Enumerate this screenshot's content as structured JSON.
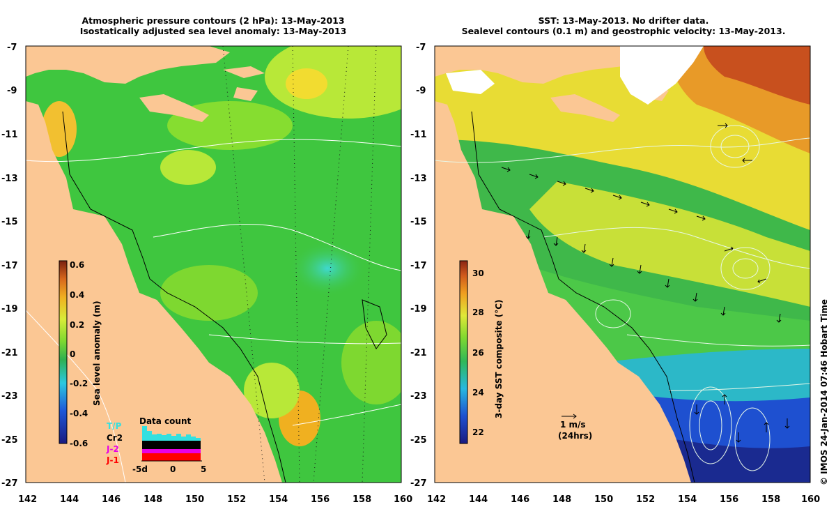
{
  "left_panel": {
    "title_line1": "Atmospheric pressure contours (2 hPa): 13-May-2013",
    "title_line2": "Isostatically adjusted sea level anomaly: 13-May-2013",
    "colorbar_label": "Sea level anomaly (m)",
    "colorbar_ticks": [
      "0.6",
      "0.4",
      "0.2",
      "0",
      "-0.2",
      "-0.4",
      "-0.6"
    ],
    "data_count": {
      "title": "Data count",
      "satellites": [
        {
          "name": "T/P",
          "color": "#33e0e0"
        },
        {
          "name": "Cr2",
          "color": "#000000"
        },
        {
          "name": "J-2",
          "color": "#e800e8"
        },
        {
          "name": "J-1",
          "color": "#ff0000"
        }
      ],
      "axis_ticks": [
        "-5d",
        "0",
        "5"
      ]
    }
  },
  "right_panel": {
    "title_line1": "SST: 13-May-2013. No drifter data.",
    "title_line2": "Sealevel contours (0.1 m) and geostrophic velocity: 13-May-2013.",
    "colorbar_label": "3-day SST composite (°C)",
    "colorbar_ticks": [
      "30",
      "28",
      "26",
      "24",
      "22"
    ],
    "velocity_legend": {
      "line1": "1 m/s",
      "line2": "(24hrs)"
    }
  },
  "axes": {
    "x_ticks": [
      "142",
      "144",
      "146",
      "148",
      "150",
      "152",
      "154",
      "156",
      "158",
      "160"
    ],
    "y_ticks": [
      "-7",
      "-9",
      "-11",
      "-13",
      "-15",
      "-17",
      "-19",
      "-21",
      "-23",
      "-25",
      "-27"
    ]
  },
  "credit": "© IMOS 24-Jan-2014 07:46 Hobart Time",
  "colors": {
    "land": "#fbc794",
    "sea_green": "#3fc63f",
    "sea_light": "#86dd30",
    "sea_yellow": "#c8ee3a",
    "sst_red": "#c8501e",
    "sst_blue": "#1a3fb0"
  }
}
